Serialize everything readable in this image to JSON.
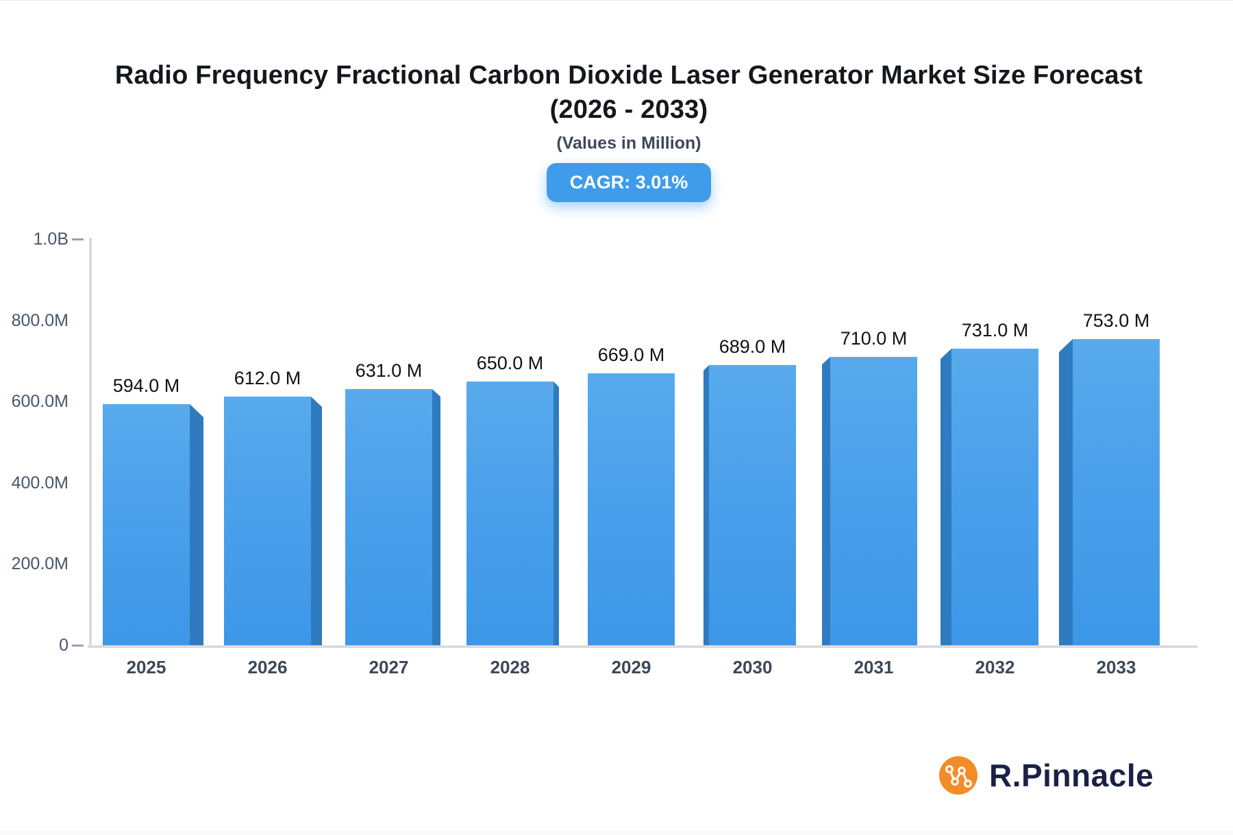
{
  "title": {
    "line1": "Radio Frequency Fractional Carbon Dioxide Laser Generator Market Size Forecast",
    "line2": "(2026 - 2033)"
  },
  "subtitle": "(Values in Million)",
  "cagr_badge": "CAGR: 3.01%",
  "brand": {
    "name": "R.Pinnacle",
    "icon": "network-nodes-icon"
  },
  "colors": {
    "bar_face_top": "#58aaed",
    "bar_face_bottom": "#3d97e8",
    "bar_side": "#2e7bc0",
    "badge_blue": "#3f9ceb",
    "axis_gray": "#dadbe0",
    "logo_orange": "#f28c28",
    "brand_navy": "#1b2145"
  },
  "chart_data": {
    "type": "bar",
    "title": "Radio Frequency Fractional Carbon Dioxide Laser Generator Market Size Forecast (2026 - 2033)",
    "subtitle": "(Values in Million)",
    "categories": [
      "2025",
      "2026",
      "2027",
      "2028",
      "2029",
      "2030",
      "2031",
      "2032",
      "2033"
    ],
    "values": [
      594,
      612,
      631,
      650,
      669,
      689,
      710,
      731,
      753
    ],
    "value_labels": [
      "594.0 M",
      "612.0 M",
      "631.0 M",
      "650.0 M",
      "669.0 M",
      "689.0 M",
      "710.0 M",
      "731.0 M",
      "753.0 M"
    ],
    "value_unit": "Million",
    "cagr": "3.01%",
    "xlabel": "",
    "ylabel": "",
    "ylim": [
      0,
      1000
    ],
    "yticks": [
      {
        "label": "1.0B",
        "value": 1000,
        "dash": true
      },
      {
        "label": "800.0M",
        "value": 800,
        "dash": false
      },
      {
        "label": "600.0M",
        "value": 600,
        "dash": false
      },
      {
        "label": "400.0M",
        "value": 400,
        "dash": false
      },
      {
        "label": "200.0M",
        "value": 200,
        "dash": false
      },
      {
        "label": "0",
        "value": 0,
        "dash": true
      }
    ],
    "grid": false,
    "legend": false,
    "style": "3d-perspective-bars-center-vanishing"
  }
}
